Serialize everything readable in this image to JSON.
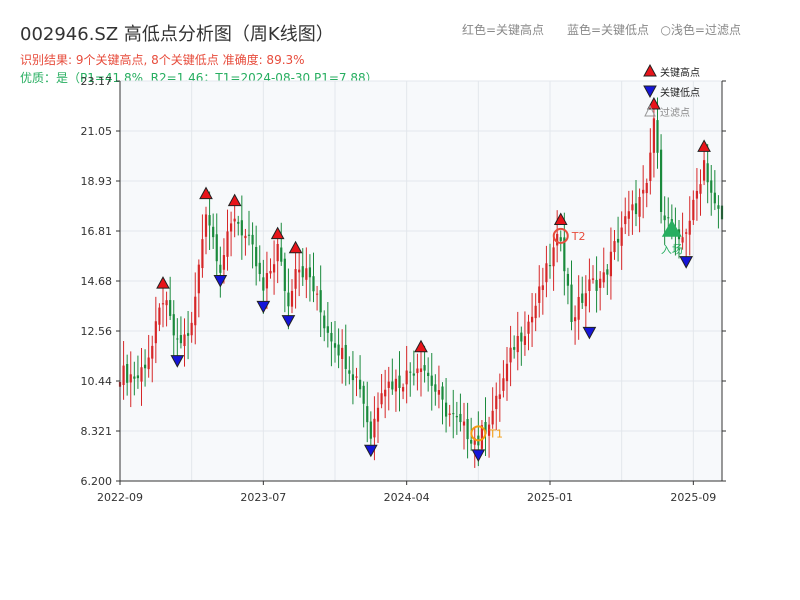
{
  "header": {
    "title": "002946.SZ 高低点分析图（周K线图）",
    "result_line": "识别结果: 9个关键高点, 8个关键低点   准确度: 89.3%",
    "quality_line": "优质：是（P1=41.8%, R2=1.46；T1=2024-08-30 P1=7.88）",
    "top_legend": "红色=关键高点      蓝色=关键低点   ○浅色=过滤点"
  },
  "colors": {
    "up": "#d62728",
    "down": "#1a8a3c",
    "high_marker": "#e8141a",
    "low_marker": "#1515d8",
    "t1": "#f39c12",
    "t2": "#e74c3c",
    "entry": "#27ae60",
    "plot_bg": "#f7f9fb",
    "grid": "#e3e7ec"
  },
  "chart_data": {
    "type": "candlestick",
    "title": "002946.SZ 高低点分析图（周K线图）",
    "ylim": [
      6.2,
      23.17
    ],
    "y_ticks": [
      "6.200",
      "8.321",
      "10.44",
      "12.56",
      "14.68",
      "16.81",
      "18.93",
      "21.05",
      "23.17"
    ],
    "x_ticks": [
      "2022-09",
      "2023-07",
      "2024-04",
      "2025-01",
      "2025-09"
    ],
    "x_tick_index": [
      0,
      40,
      80,
      120,
      160
    ],
    "anchors": [
      [
        0,
        10.8
      ],
      [
        5,
        10.6
      ],
      [
        9,
        11.9
      ],
      [
        12,
        14.0
      ],
      [
        16,
        11.9
      ],
      [
        20,
        12.7
      ],
      [
        24,
        17.8
      ],
      [
        28,
        15.3
      ],
      [
        32,
        17.5
      ],
      [
        37,
        15.9
      ],
      [
        40,
        14.2
      ],
      [
        44,
        16.1
      ],
      [
        47,
        13.6
      ],
      [
        49,
        15.5
      ],
      [
        53,
        14.8
      ],
      [
        57,
        12.9
      ],
      [
        62,
        11.6
      ],
      [
        67,
        10.3
      ],
      [
        70,
        8.1
      ],
      [
        73,
        10.3
      ],
      [
        78,
        10.4
      ],
      [
        84,
        11.3
      ],
      [
        90,
        9.4
      ],
      [
        95,
        8.5
      ],
      [
        100,
        7.9
      ],
      [
        105,
        9.5
      ],
      [
        110,
        12.0
      ],
      [
        115,
        13.2
      ],
      [
        120,
        15.5
      ],
      [
        123,
        16.7
      ],
      [
        126,
        13.1
      ],
      [
        131,
        14.5
      ],
      [
        135,
        14.8
      ],
      [
        140,
        17.0
      ],
      [
        147,
        18.5
      ],
      [
        149,
        21.6
      ],
      [
        151,
        18.0
      ],
      [
        153,
        17.2
      ],
      [
        156,
        16.1
      ],
      [
        160,
        17.8
      ],
      [
        163,
        19.8
      ],
      [
        166,
        17.8
      ],
      [
        168,
        17.3
      ]
    ],
    "key_highs": [
      {
        "i": 12,
        "price": 14.0
      },
      {
        "i": 24,
        "price": 17.8
      },
      {
        "i": 32,
        "price": 17.5
      },
      {
        "i": 44,
        "price": 16.1
      },
      {
        "i": 49,
        "price": 15.5
      },
      {
        "i": 84,
        "price": 11.3
      },
      {
        "i": 123,
        "price": 16.7
      },
      {
        "i": 149,
        "price": 21.6
      },
      {
        "i": 163,
        "price": 19.8
      }
    ],
    "key_lows": [
      {
        "i": 16,
        "price": 11.9
      },
      {
        "i": 28,
        "price": 15.3
      },
      {
        "i": 40,
        "price": 14.2
      },
      {
        "i": 47,
        "price": 13.6
      },
      {
        "i": 70,
        "price": 8.1
      },
      {
        "i": 100,
        "price": 7.9
      },
      {
        "i": 131,
        "price": 13.1
      },
      {
        "i": 158,
        "price": 16.1
      }
    ],
    "t1": {
      "i": 100,
      "price": 7.88,
      "label": "T1"
    },
    "t2": {
      "i": 123,
      "price": 16.6,
      "label": "T2"
    },
    "entry": {
      "i": 154,
      "price": 16.9,
      "label": "入场"
    },
    "legend": [
      {
        "label": "关键高点",
        "kind": "high"
      },
      {
        "label": "关键低点",
        "kind": "low"
      },
      {
        "label": "过滤点",
        "kind": "filtered"
      }
    ],
    "legend_position": "top-right",
    "grid": true
  }
}
